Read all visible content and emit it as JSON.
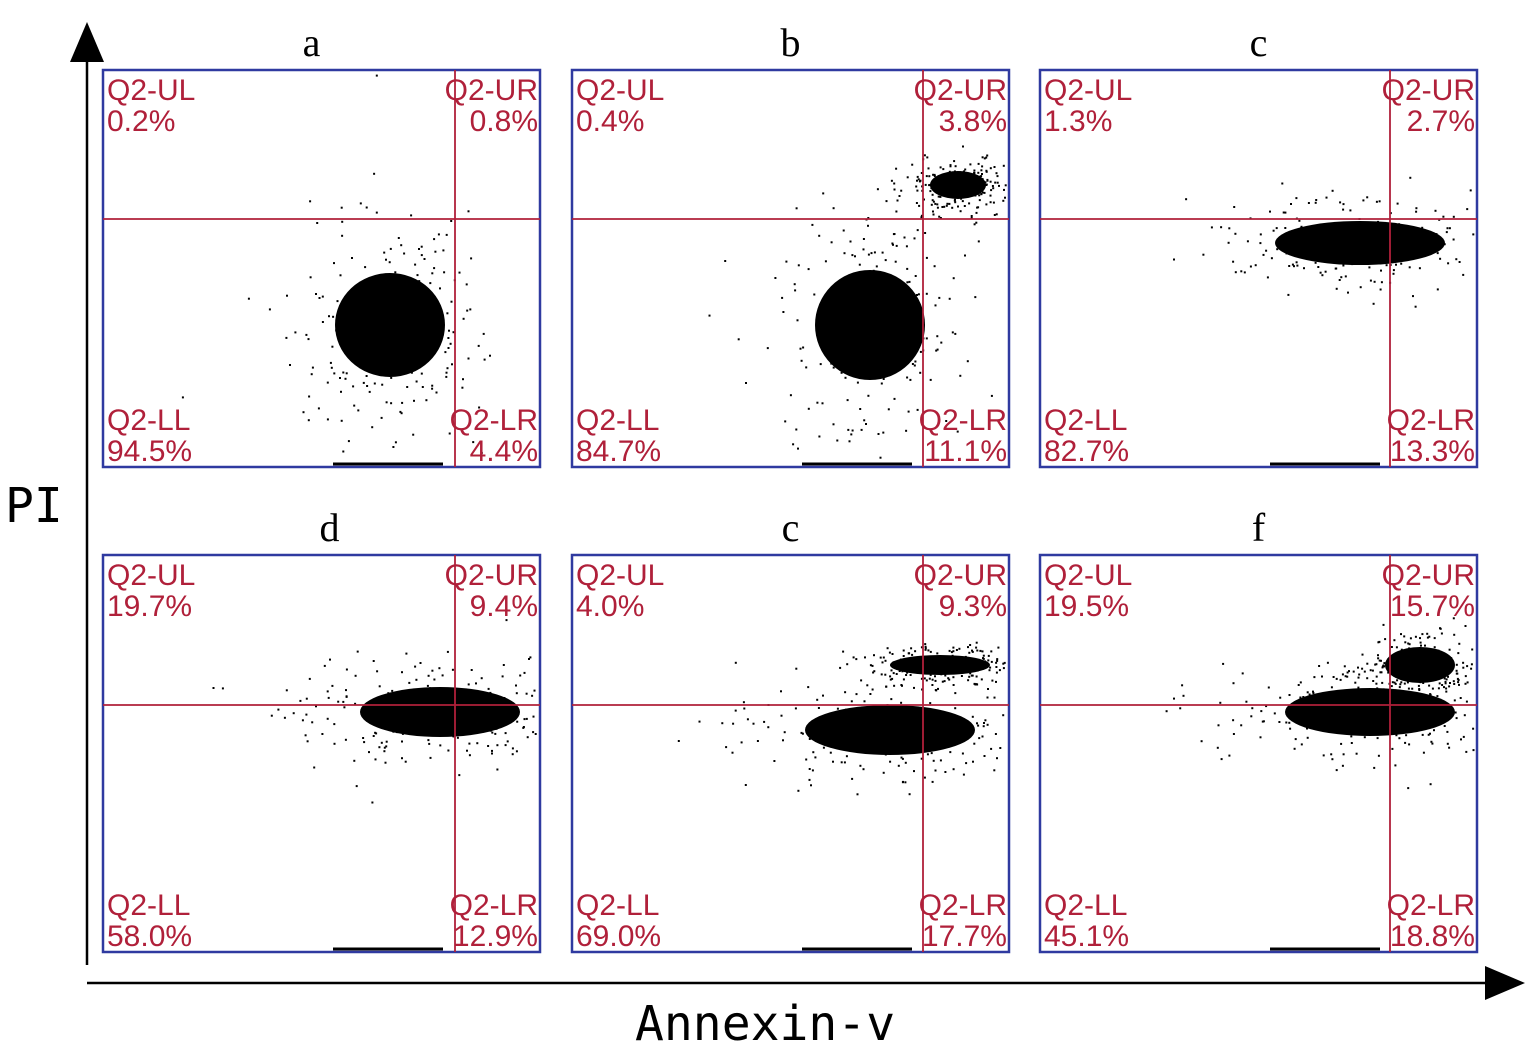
{
  "chart_data": {
    "type": "scatter",
    "xlabel": "Annexin-v",
    "ylabel": "PI",
    "panels": [
      {
        "label": "a",
        "quadrants": {
          "UL": {
            "name": "Q2-UL",
            "value": "0.2%"
          },
          "UR": {
            "name": "Q2-UR",
            "value": "0.8%"
          },
          "LL": {
            "name": "Q2-LL",
            "value": "94.5%"
          },
          "LR": {
            "name": "Q2-LR",
            "value": "4.4%"
          }
        }
      },
      {
        "label": "b",
        "quadrants": {
          "UL": {
            "name": "Q2-UL",
            "value": "0.4%"
          },
          "UR": {
            "name": "Q2-UR",
            "value": "3.8%"
          },
          "LL": {
            "name": "Q2-LL",
            "value": "84.7%"
          },
          "LR": {
            "name": "Q2-LR",
            "value": "11.1%"
          }
        }
      },
      {
        "label": "c",
        "quadrants": {
          "UL": {
            "name": "Q2-UL",
            "value": "1.3%"
          },
          "UR": {
            "name": "Q2-UR",
            "value": "2.7%"
          },
          "LL": {
            "name": "Q2-LL",
            "value": "82.7%"
          },
          "LR": {
            "name": "Q2-LR",
            "value": "13.3%"
          }
        }
      },
      {
        "label": "d",
        "quadrants": {
          "UL": {
            "name": "Q2-UL",
            "value": "19.7%"
          },
          "UR": {
            "name": "Q2-UR",
            "value": "9.4%"
          },
          "LL": {
            "name": "Q2-LL",
            "value": "58.0%"
          },
          "LR": {
            "name": "Q2-LR",
            "value": "12.9%"
          }
        }
      },
      {
        "label": "c",
        "quadrants": {
          "UL": {
            "name": "Q2-UL",
            "value": "4.0%"
          },
          "UR": {
            "name": "Q2-UR",
            "value": "9.3%"
          },
          "LL": {
            "name": "Q2-LL",
            "value": "69.0%"
          },
          "LR": {
            "name": "Q2-LR",
            "value": "17.7%"
          }
        }
      },
      {
        "label": "f",
        "quadrants": {
          "UL": {
            "name": "Q2-UL",
            "value": "19.5%"
          },
          "UR": {
            "name": "Q2-UR",
            "value": "15.7%"
          },
          "LL": {
            "name": "Q2-LL",
            "value": "45.1%"
          },
          "LR": {
            "name": "Q2-LR",
            "value": "18.8%"
          }
        }
      }
    ]
  },
  "colors": {
    "frame": "#2f3aa0",
    "gate": "#b0203a",
    "dots": "#000000"
  }
}
